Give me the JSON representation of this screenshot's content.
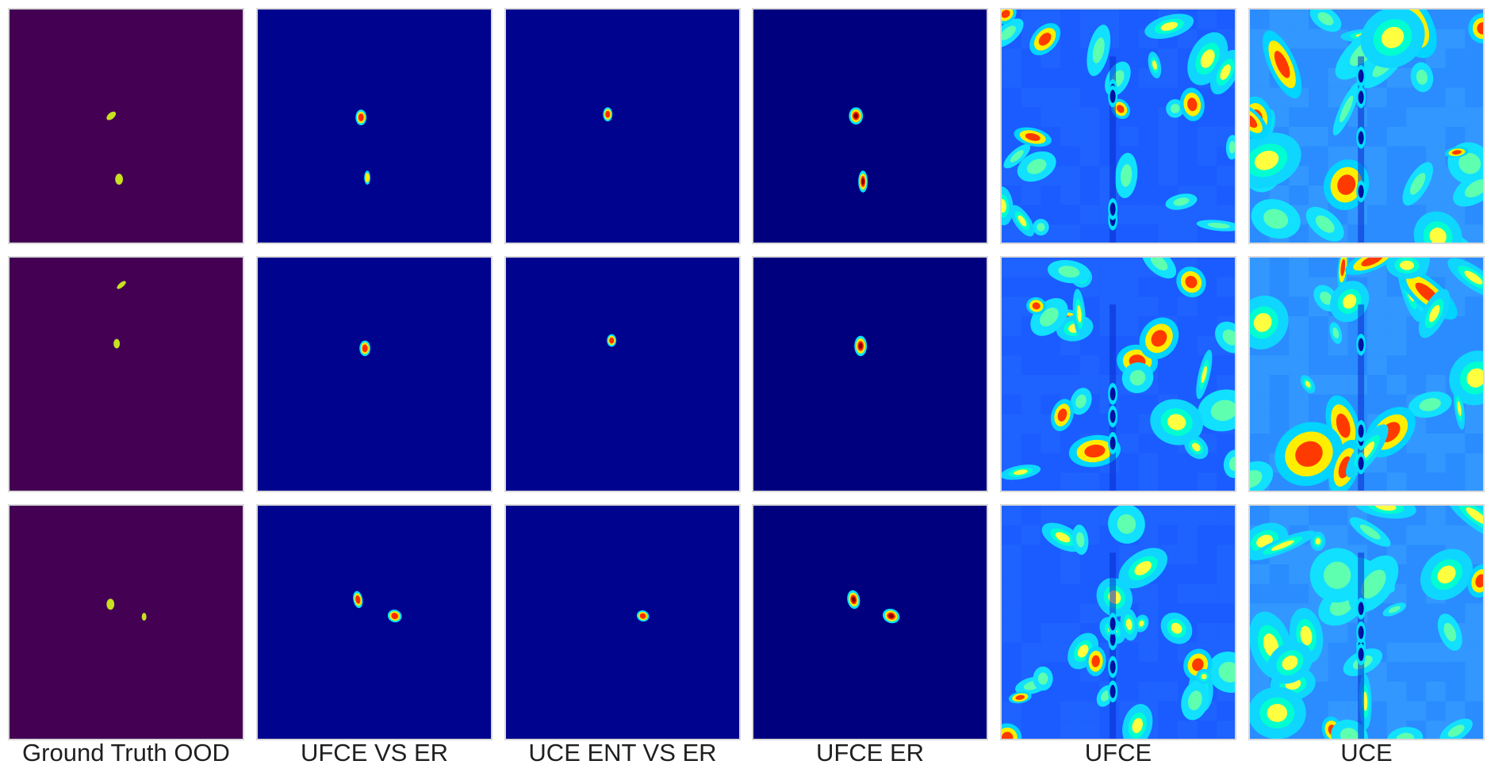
{
  "figure": {
    "columns": [
      {
        "key": "gt",
        "label": "Ground Truth OOD"
      },
      {
        "key": "ufce_vs_er",
        "label": "UFCE VS ER"
      },
      {
        "key": "uce_ent_vs_er",
        "label": "UCE ENT VS ER"
      },
      {
        "key": "ufce_er",
        "label": "UFCE ER"
      },
      {
        "key": "ufce",
        "label": "UFCE"
      },
      {
        "key": "uce",
        "label": "UCE"
      }
    ],
    "rows": 3,
    "colors": {
      "gt_background": "#440154",
      "gt_object": "#c8e020",
      "jet_low": "#00007f",
      "jet_mid": "#00a8ff",
      "jet_high": "#7f0000"
    }
  }
}
